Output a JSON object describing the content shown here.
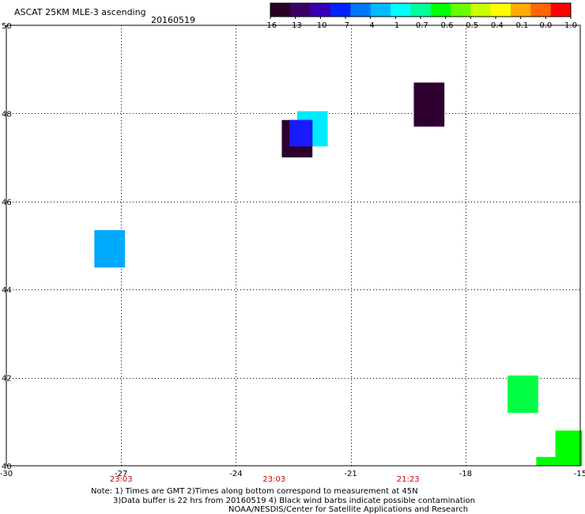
{
  "header": {
    "title": "ASCAT 25KM MLE-3 ascending",
    "date": "20160519"
  },
  "colorbar": {
    "colors": [
      "#2a0025",
      "#3a0066",
      "#3500b8",
      "#0022ff",
      "#0077ff",
      "#00bbff",
      "#00ffff",
      "#00ff99",
      "#00ff00",
      "#66ff00",
      "#ccff00",
      "#ffff00",
      "#ffaa00",
      "#ff6600",
      "#ff0000"
    ],
    "labels": [
      "-16",
      "-13",
      "-10",
      "-7",
      "-4",
      "-1",
      "-0.7",
      "-0.6",
      "-0.5",
      "-0.4",
      "-0.1",
      "0.0",
      "1.0"
    ]
  },
  "map": {
    "lon_range": [
      -30,
      -15
    ],
    "lat_range": [
      40,
      50
    ],
    "lon_ticks": [
      {
        "value": -30,
        "label": "-30"
      },
      {
        "value": -27,
        "label": "-27"
      },
      {
        "value": -24,
        "label": "-24"
      },
      {
        "value": -21,
        "label": "-21"
      },
      {
        "value": -18,
        "label": "-18"
      },
      {
        "value": -15,
        "label": "-15"
      }
    ],
    "lat_ticks": [
      {
        "value": 50,
        "label": "50"
      },
      {
        "value": 48,
        "label": "48"
      },
      {
        "value": 46,
        "label": "46"
      },
      {
        "value": 44,
        "label": "44"
      },
      {
        "value": 42,
        "label": "42"
      },
      {
        "value": 40,
        "label": "40"
      }
    ],
    "times": [
      {
        "lon": -27,
        "label": "23:03"
      },
      {
        "lon": -23,
        "label": "23:03"
      },
      {
        "lon": -19.5,
        "label": "21:23"
      }
    ],
    "cells": [
      {
        "name": "cell-1",
        "lon": [
          -19.35,
          -18.55
        ],
        "lat": [
          47.7,
          48.7
        ],
        "color": "#2d0030"
      },
      {
        "name": "cell-2",
        "lon": [
          -22.4,
          -21.6
        ],
        "lat": [
          47.25,
          48.05
        ],
        "color": "#00eaff"
      },
      {
        "name": "cell-3",
        "lon": [
          -22.8,
          -22.0
        ],
        "lat": [
          47.0,
          47.85
        ],
        "color": "#2d0030"
      },
      {
        "name": "cell-4",
        "lon": [
          -22.6,
          -22.0
        ],
        "lat": [
          47.25,
          47.85
        ],
        "color": "#1a1aff"
      },
      {
        "name": "cell-5",
        "lon": [
          -27.7,
          -26.9
        ],
        "lat": [
          44.5,
          45.35
        ],
        "color": "#00aaff"
      },
      {
        "name": "cell-6",
        "lon": [
          -16.9,
          -16.1
        ],
        "lat": [
          41.2,
          42.05
        ],
        "color": "#00ff44"
      },
      {
        "name": "cell-7",
        "lon": [
          -15.65,
          -14.95
        ],
        "lat": [
          40.0,
          40.8
        ],
        "color": "#00ff00"
      },
      {
        "name": "cell-8",
        "lon": [
          -16.15,
          -15.65
        ],
        "lat": [
          40.0,
          40.2
        ],
        "color": "#00ff00"
      }
    ]
  },
  "notes": {
    "line1": "Note: 1) Times are GMT 2)Times along bottom correspond to measurement at 45N",
    "line2": "3)Data buffer is 22 hrs from 20160519 4) Black wind barbs indicate possible contamination",
    "line3": "NOAA/NESDIS/Center for Satellite Applications and Research"
  }
}
